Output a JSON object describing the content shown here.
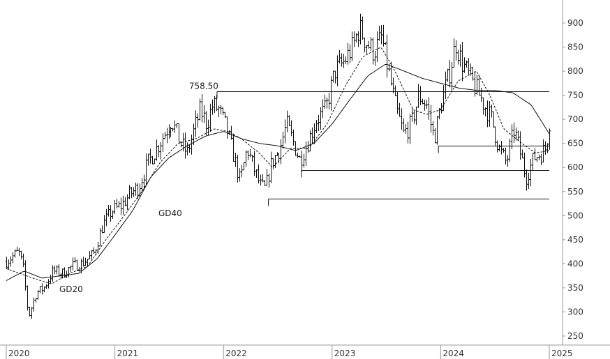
{
  "chart_data": {
    "type": "bar",
    "subtype": "ohlc-weekly",
    "y_axis": {
      "min": 250,
      "max": 900,
      "ticks": [
        250,
        300,
        350,
        400,
        450,
        500,
        550,
        600,
        650,
        700,
        750,
        800,
        850,
        900
      ],
      "position": "right"
    },
    "x_axis": {
      "start": "2020-01-01",
      "end": "2025-01-01",
      "ticks": [
        "2020",
        "2021",
        "2022",
        "2023",
        "2024",
        "2025"
      ]
    },
    "grid": false,
    "legend": "none",
    "price_anchors": [
      [
        "2020-01-01",
        405
      ],
      [
        "2020-02-10",
        425
      ],
      [
        "2020-02-25",
        395
      ],
      [
        "2020-03-15",
        290
      ],
      [
        "2020-04-10",
        340
      ],
      [
        "2020-05-05",
        350
      ],
      [
        "2020-06-05",
        385
      ],
      [
        "2020-07-10",
        380
      ],
      [
        "2020-08-10",
        395
      ],
      [
        "2020-09-10",
        400
      ],
      [
        "2020-10-20",
        420
      ],
      [
        "2020-11-20",
        480
      ],
      [
        "2020-12-20",
        510
      ],
      [
        "2021-01-20",
        520
      ],
      [
        "2021-02-20",
        545
      ],
      [
        "2021-03-20",
        560
      ],
      [
        "2021-04-20",
        610
      ],
      [
        "2021-05-20",
        640
      ],
      [
        "2021-06-15",
        670
      ],
      [
        "2021-07-10",
        700
      ],
      [
        "2021-08-10",
        650
      ],
      [
        "2021-09-01",
        630
      ],
      [
        "2021-09-25",
        680
      ],
      [
        "2021-10-15",
        720
      ],
      [
        "2021-11-05",
        690
      ],
      [
        "2021-11-25",
        730
      ],
      [
        "2021-12-15",
        720
      ],
      [
        "2022-01-10",
        680
      ],
      [
        "2022-02-05",
        620
      ],
      [
        "2022-02-25",
        570
      ],
      [
        "2022-03-20",
        640
      ],
      [
        "2022-04-10",
        600
      ],
      [
        "2022-05-05",
        560
      ],
      [
        "2022-05-20",
        555
      ],
      [
        "2022-06-10",
        610
      ],
      [
        "2022-07-10",
        640
      ],
      [
        "2022-08-01",
        690
      ],
      [
        "2022-08-25",
        650
      ],
      [
        "2022-09-15",
        615
      ],
      [
        "2022-10-10",
        650
      ],
      [
        "2022-11-10",
        700
      ],
      [
        "2022-12-10",
        720
      ],
      [
        "2023-01-10",
        800
      ],
      [
        "2023-02-10",
        820
      ],
      [
        "2023-03-10",
        850
      ],
      [
        "2023-04-01",
        890
      ],
      [
        "2023-04-25",
        860
      ],
      [
        "2023-05-20",
        840
      ],
      [
        "2023-06-15",
        870
      ],
      [
        "2023-07-10",
        800
      ],
      [
        "2023-08-05",
        720
      ],
      [
        "2023-08-30",
        670
      ],
      [
        "2023-09-25",
        690
      ],
      [
        "2023-10-20",
        750
      ],
      [
        "2023-11-15",
        730
      ],
      [
        "2023-12-10",
        660
      ],
      [
        "2024-01-05",
        740
      ],
      [
        "2024-02-01",
        800
      ],
      [
        "2024-02-20",
        860
      ],
      [
        "2024-03-10",
        820
      ],
      [
        "2024-04-05",
        790
      ],
      [
        "2024-05-01",
        760
      ],
      [
        "2024-05-25",
        730
      ],
      [
        "2024-06-20",
        700
      ],
      [
        "2024-07-15",
        640
      ],
      [
        "2024-08-10",
        610
      ],
      [
        "2024-09-05",
        680
      ],
      [
        "2024-09-25",
        630
      ],
      [
        "2024-10-15",
        580
      ],
      [
        "2024-11-10",
        620
      ],
      [
        "2024-12-05",
        630
      ],
      [
        "2024-12-20",
        640
      ],
      [
        "2025-01-01",
        695
      ]
    ],
    "gd20_anchors": [
      [
        "2020-01-01",
        390
      ],
      [
        "2020-04-01",
        370
      ],
      [
        "2020-06-01",
        358
      ],
      [
        "2020-08-01",
        380
      ],
      [
        "2020-10-01",
        395
      ],
      [
        "2020-12-01",
        450
      ],
      [
        "2021-02-01",
        500
      ],
      [
        "2021-04-01",
        550
      ],
      [
        "2021-06-01",
        610
      ],
      [
        "2021-08-01",
        650
      ],
      [
        "2021-10-01",
        660
      ],
      [
        "2021-12-01",
        680
      ],
      [
        "2022-01-15",
        675
      ],
      [
        "2022-03-01",
        660
      ],
      [
        "2022-05-01",
        630
      ],
      [
        "2022-06-15",
        600
      ],
      [
        "2022-08-15",
        640
      ],
      [
        "2022-10-15",
        640
      ],
      [
        "2022-12-15",
        690
      ],
      [
        "2023-02-15",
        770
      ],
      [
        "2023-04-15",
        830
      ],
      [
        "2023-06-15",
        850
      ],
      [
        "2023-08-01",
        800
      ],
      [
        "2023-10-01",
        720
      ],
      [
        "2023-11-15",
        710
      ],
      [
        "2024-01-01",
        720
      ],
      [
        "2024-03-01",
        780
      ],
      [
        "2024-05-01",
        800
      ],
      [
        "2024-06-15",
        750
      ],
      [
        "2024-08-01",
        680
      ],
      [
        "2024-10-01",
        650
      ],
      [
        "2024-11-15",
        630
      ],
      [
        "2025-01-01",
        635
      ]
    ],
    "gd40_anchors": [
      [
        "2020-01-01",
        365
      ],
      [
        "2020-03-01",
        385
      ],
      [
        "2020-05-01",
        370
      ],
      [
        "2020-07-01",
        375
      ],
      [
        "2020-09-01",
        380
      ],
      [
        "2020-11-01",
        410
      ],
      [
        "2021-01-01",
        460
      ],
      [
        "2021-03-01",
        510
      ],
      [
        "2021-05-01",
        580
      ],
      [
        "2021-07-01",
        620
      ],
      [
        "2021-09-01",
        645
      ],
      [
        "2021-11-01",
        665
      ],
      [
        "2022-01-01",
        675
      ],
      [
        "2022-03-01",
        660
      ],
      [
        "2022-05-01",
        650
      ],
      [
        "2022-07-01",
        645
      ],
      [
        "2022-09-01",
        635
      ],
      [
        "2022-11-01",
        650
      ],
      [
        "2023-01-01",
        690
      ],
      [
        "2023-03-01",
        740
      ],
      [
        "2023-05-01",
        790
      ],
      [
        "2023-07-01",
        815
      ],
      [
        "2023-09-01",
        800
      ],
      [
        "2023-11-01",
        785
      ],
      [
        "2024-01-01",
        775
      ],
      [
        "2024-03-01",
        765
      ],
      [
        "2024-05-01",
        760
      ],
      [
        "2024-07-01",
        760
      ],
      [
        "2024-09-01",
        755
      ],
      [
        "2024-11-01",
        730
      ],
      [
        "2025-01-01",
        670
      ]
    ],
    "series": [
      {
        "name": "GD20",
        "style": "dashed"
      },
      {
        "name": "GD40",
        "style": "solid"
      }
    ],
    "horizontal_lines": [
      {
        "value": 758.5,
        "start": "2021-12-10",
        "end": "2025-01-01",
        "label": "758.50"
      },
      {
        "value": 645,
        "start": "2023-12-25",
        "end": "2025-01-01"
      },
      {
        "value": 595,
        "start": "2022-09-20",
        "end": "2025-01-01"
      },
      {
        "value": 535,
        "start": "2022-06-01",
        "end": "2025-01-01"
      }
    ],
    "colors": {
      "bars": "#111111",
      "lines": "#111111",
      "axis": "#999999",
      "background": "#ffffff"
    }
  }
}
